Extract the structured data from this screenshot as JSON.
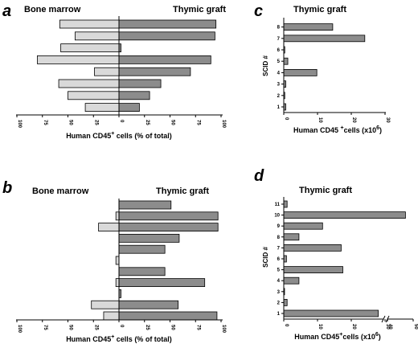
{
  "chart_data": [
    {
      "panel": "a",
      "type": "bar",
      "orientation": "horizontal-butterfly",
      "left_title": "Bone marrow",
      "right_title": "Thymic graft",
      "xlabel_pre": "Human CD45",
      "xlabel_sup": "+",
      "xlabel_post": " cells (% of total)",
      "xlim": [
        0,
        100
      ],
      "ticks": [
        "100",
        "75",
        "50",
        "25",
        "0",
        "25",
        "50",
        "75",
        "100"
      ],
      "colors": {
        "bone_marrow": "#d9d9d9",
        "thymic_graft": "#8c8c8c"
      },
      "series": [
        {
          "name": "Bone marrow",
          "values": [
            58,
            43,
            57,
            80,
            24,
            59,
            50,
            33
          ]
        },
        {
          "name": "Thymic graft",
          "values": [
            95,
            94,
            2,
            90,
            70,
            41,
            30,
            20
          ]
        }
      ]
    },
    {
      "panel": "b",
      "type": "bar",
      "orientation": "horizontal-butterfly",
      "left_title": "Bone marrow",
      "right_title": "Thymic graft",
      "xlabel_pre": "Human CD45",
      "xlabel_sup": "+",
      "xlabel_post": " cells (% of total)",
      "xlim": [
        0,
        100
      ],
      "ticks": [
        "100",
        "75",
        "50",
        "25",
        "0",
        "25",
        "50",
        "75",
        "100"
      ],
      "colors": {
        "bone_marrow": "#d9d9d9",
        "thymic_graft": "#8c8c8c"
      },
      "series": [
        {
          "name": "Bone marrow",
          "values": [
            0,
            3,
            20,
            0,
            0,
            3,
            0,
            3,
            0,
            27,
            15
          ]
        },
        {
          "name": "Thymic graft",
          "values": [
            51,
            97,
            97,
            59,
            45,
            0,
            45,
            84,
            2,
            58,
            96
          ]
        }
      ]
    },
    {
      "panel": "c",
      "type": "bar",
      "orientation": "horizontal",
      "title": "Thymic graft",
      "ylabel": "SCID #",
      "xlabel_pre": "Human CD45 ",
      "xlabel_sup": "+",
      "xlabel_post": "cells (x10",
      "xlabel_sup2": "6",
      "xlabel_end": ")",
      "xlim": [
        0,
        30
      ],
      "xticks": [
        0,
        10,
        20,
        30
      ],
      "categories": [
        "1",
        "2",
        "3",
        "4",
        "5",
        "6",
        "7",
        "8"
      ],
      "values": [
        0.6,
        0.3,
        0.6,
        9.8,
        1.2,
        0.3,
        24,
        14.5
      ],
      "color": "#8c8c8c"
    },
    {
      "panel": "d",
      "type": "bar",
      "orientation": "horizontal",
      "title": "Thymic graft",
      "ylabel": "SCID #",
      "xlabel_pre": "Human CD45",
      "xlabel_sup": "+",
      "xlabel_post": "cells (x10",
      "xlabel_sup2": "6",
      "xlabel_end": ")",
      "axis_break": "30-40",
      "xticks": [
        "0",
        "10",
        "20",
        "30",
        "40",
        "50"
      ],
      "categories": [
        "1",
        "2",
        "3",
        "4",
        "5",
        "6",
        "7",
        "8",
        "9",
        "10",
        "11"
      ],
      "values": [
        28,
        1,
        0,
        4.5,
        17.5,
        0.8,
        17,
        4.5,
        11.5,
        47,
        1
      ],
      "color": "#8c8c8c"
    }
  ]
}
